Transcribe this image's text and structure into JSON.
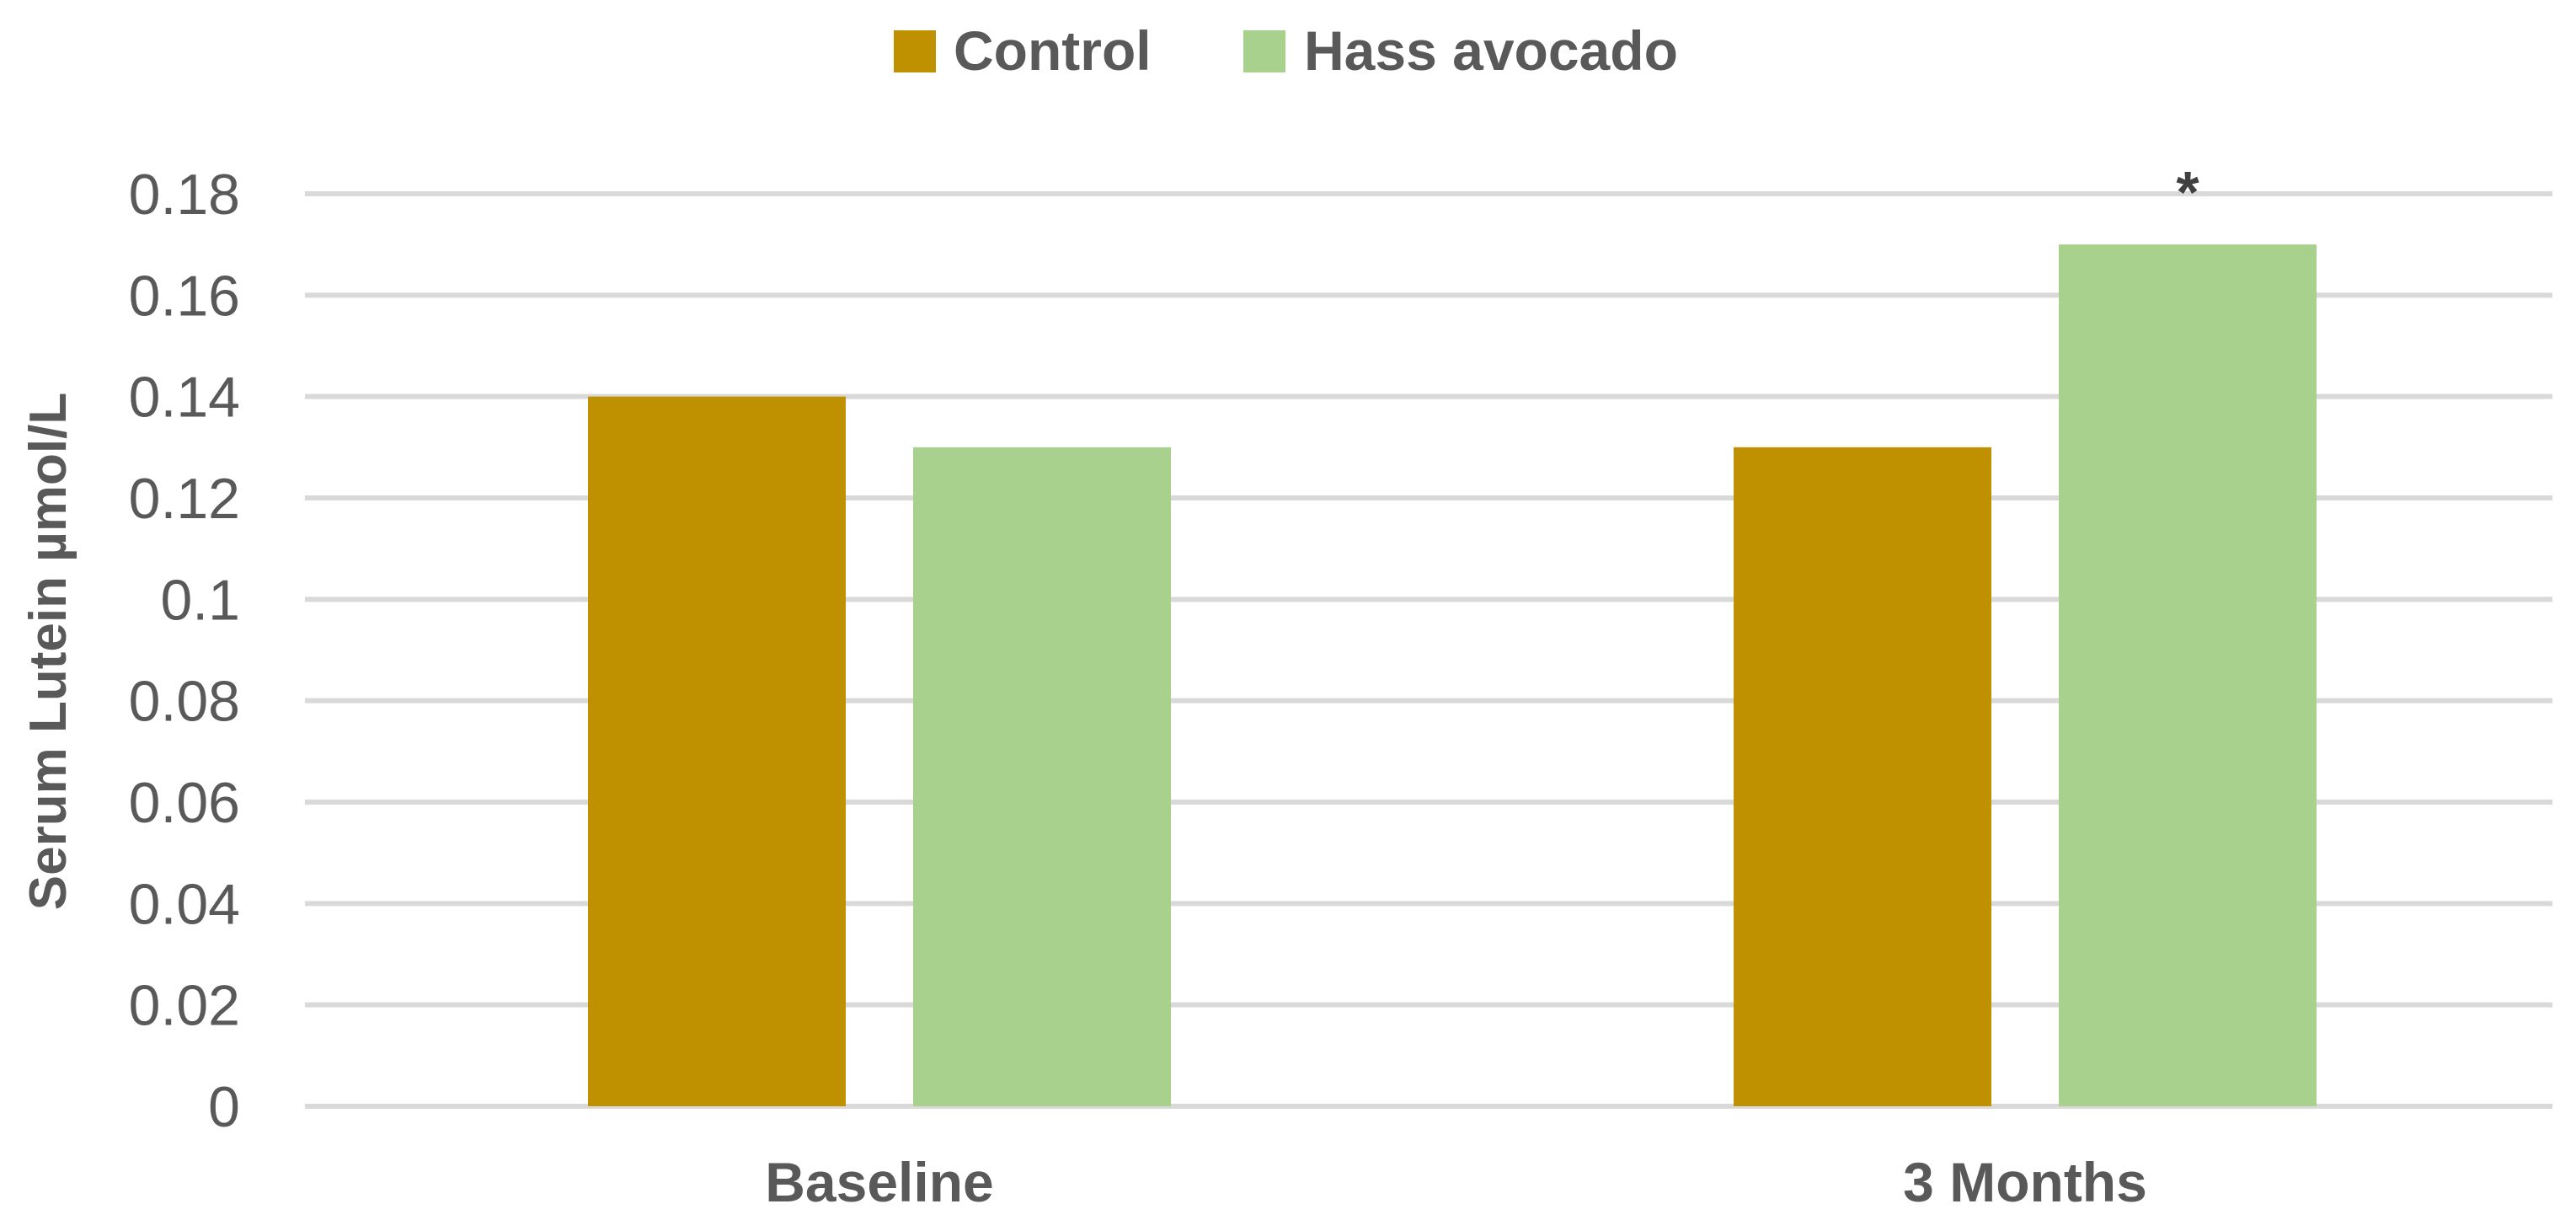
{
  "chart_data": {
    "type": "bar",
    "title": "",
    "xlabel": "",
    "ylabel": "Serum Lutein µmol/L",
    "categories": [
      "Baseline",
      "3 Months"
    ],
    "series": [
      {
        "name": "Control",
        "color": "#bf9000",
        "values": [
          0.14,
          0.13
        ]
      },
      {
        "name": "Hass avocado",
        "color": "#a9d18e",
        "values": [
          0.13,
          0.17
        ]
      }
    ],
    "ylim": [
      0,
      0.18
    ],
    "yticks": [
      "0",
      "0.02",
      "0.04",
      "0.06",
      "0.08",
      "0.1",
      "0.12",
      "0.14",
      "0.16",
      "0.18"
    ],
    "ytick_values": [
      0,
      0.02,
      0.04,
      0.06,
      0.08,
      0.1,
      0.12,
      0.14,
      0.16,
      0.18
    ],
    "grid": true,
    "legend_position": "top-center",
    "annotations": [
      {
        "text": "*",
        "category": "3 Months",
        "series": "Hass avocado"
      }
    ]
  }
}
